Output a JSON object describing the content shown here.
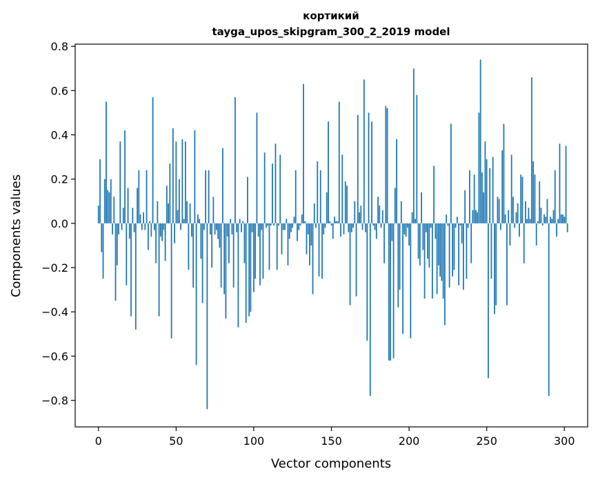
{
  "chart_data": {
    "type": "bar",
    "title": "кортикий",
    "subtitle": "tayga_upos_skipgram_300_2_2019 model",
    "xlabel": "Vector components",
    "ylabel": "Components values",
    "xlim": [
      -15,
      315
    ],
    "ylim": [
      -0.92,
      0.81
    ],
    "xticks": [
      0,
      50,
      100,
      150,
      200,
      250,
      300
    ],
    "xtick_labels": [
      "0",
      "50",
      "100",
      "150",
      "200",
      "250",
      "300"
    ],
    "yticks": [
      -0.8,
      -0.6,
      -0.4,
      -0.2,
      0.0,
      0.2,
      0.4,
      0.6,
      0.8
    ],
    "ytick_labels": [
      "−0.8",
      "−0.6",
      "−0.4",
      "−0.2",
      "0.0",
      "0.2",
      "0.4",
      "0.6",
      "0.8"
    ],
    "grid": false,
    "bar_color": "#1f77b4",
    "values": [
      0.08,
      0.29,
      -0.13,
      -0.25,
      0.2,
      0.55,
      0.15,
      0.14,
      0.2,
      -0.05,
      0.12,
      -0.35,
      -0.19,
      -0.05,
      0.37,
      -0.03,
      0.07,
      0.42,
      -0.28,
      0.16,
      -0.07,
      -0.42,
      0.07,
      -0.04,
      -0.48,
      0.16,
      0.24,
      0.04,
      -0.03,
      0.05,
      -0.03,
      0.24,
      -0.12,
      0.01,
      -0.06,
      0.57,
      -0.03,
      -0.18,
      0.1,
      -0.42,
      -0.06,
      -0.08,
      -0.03,
      -0.17,
      0.17,
      0.09,
      0.27,
      -0.52,
      0.43,
      -0.09,
      0.37,
      0.06,
      0.2,
      -0.03,
      0.38,
      0.02,
      0.37,
      0.1,
      -0.21,
      0.09,
      -0.06,
      -0.29,
      0.42,
      -0.64,
      0.04,
      0.02,
      -0.16,
      -0.36,
      -0.03,
      0.24,
      -0.84,
      0.24,
      -0.05,
      -0.2,
      0.12,
      -0.05,
      -0.03,
      -0.07,
      -0.11,
      -0.29,
      0.34,
      -0.32,
      -0.43,
      -0.06,
      -0.18,
      0.02,
      -0.05,
      -0.29,
      0.57,
      -0.04,
      -0.47,
      0.02,
      -0.04,
      0.01,
      -0.18,
      -0.45,
      0.21,
      -0.42,
      -0.4,
      -0.04,
      -0.31,
      -0.25,
      0.5,
      -0.06,
      -0.28,
      -0.03,
      -0.25,
      0.32,
      -0.02,
      -0.01,
      -0.21,
      -0.01,
      0.27,
      -0.01,
      0.36,
      -0.21,
      -0.01,
      0.31,
      -0.14,
      -0.03,
      -0.03,
      0.02,
      -0.19,
      -0.07,
      -0.04,
      -0.02,
      0.03,
      0.24,
      -0.08,
      -0.03,
      -0.01,
      0.04,
      0.63,
      0.01,
      -0.14,
      -0.05,
      -0.19,
      -0.1,
      -0.32,
      0.09,
      -0.02,
      0.28,
      -0.24,
      0.24,
      -0.25,
      -0.05,
      -0.02,
      0.14,
      0.46,
      0.01,
      -0.01,
      -0.07,
      0.03,
      0.01,
      0.01,
      0.55,
      -0.06,
      0.31,
      -0.05,
      0.19,
      0.17,
      -0.04,
      -0.37,
      -0.04,
      -0.02,
      0.1,
      -0.33,
      0.49,
      0.05,
      0.08,
      -0.03,
      0.65,
      -0.04,
      -0.53,
      0.5,
      -0.78,
      0.46,
      -0.01,
      -0.03,
      -0.07,
      0.12,
      0.08,
      -0.02,
      0.06,
      -0.18,
      0.53,
      0.52,
      -0.62,
      -0.62,
      -0.08,
      -0.61,
      0.16,
      0.38,
      -0.38,
      -0.3,
      0.1,
      -0.5,
      -0.05,
      -0.06,
      -0.02,
      -0.1,
      -0.52,
      0.05,
      0.7,
      0.02,
      0.58,
      -0.16,
      -0.19,
      0.14,
      -0.12,
      -0.34,
      -0.04,
      -0.16,
      -0.2,
      -0.02,
      -0.34,
      0.26,
      -0.07,
      -0.32,
      -0.19,
      -0.24,
      -0.26,
      -0.34,
      -0.46,
      0.04,
      -0.01,
      -0.29,
      0.45,
      -0.24,
      -0.21,
      -0.02,
      0.03,
      -0.28,
      -0.01,
      -0.09,
      -0.3,
      0.15,
      -0.25,
      -0.02,
      0.24,
      -0.18,
      0.06,
      0.22,
      0.06,
      0.05,
      0.5,
      0.74,
      0.23,
      0.14,
      0.37,
      0.29,
      -0.7,
      0.25,
      -0.25,
      0.3,
      -0.41,
      -0.37,
      0.12,
      0.11,
      -0.03,
      0.33,
      0.45,
      0.04,
      -0.37,
      0.06,
      -0.1,
      0.31,
      0.12,
      -0.02,
      0.05,
      0.09,
      -0.06,
      0.22,
      0.21,
      -0.18,
      0.1,
      0.02,
      0.07,
      0.02,
      0.66,
      0.28,
      0.22,
      -0.1,
      0.01,
      0.19,
      0.07,
      -0.01,
      0.04,
      0.03,
      0.11,
      -0.78,
      0.03,
      0.02,
      0.06,
      0.24,
      -0.06,
      0.02,
      0.36,
      0.04,
      0.04,
      0.03,
      0.35,
      -0.04
    ]
  }
}
